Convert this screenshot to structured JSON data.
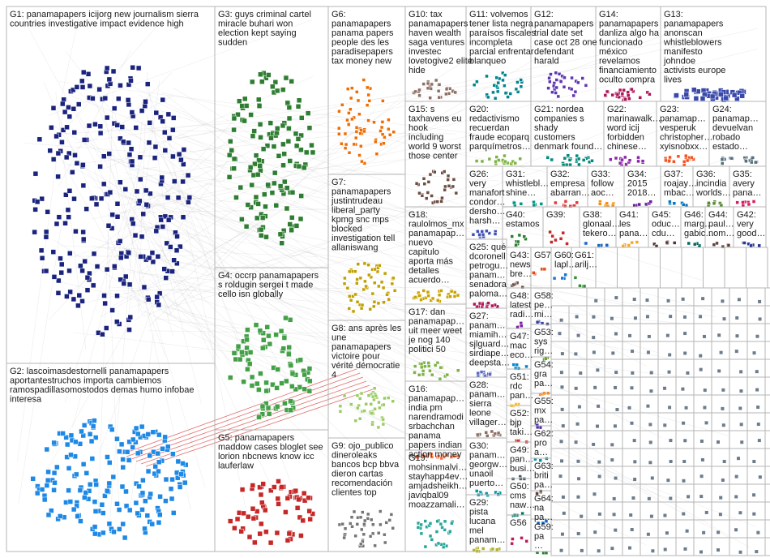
{
  "groups": [
    {
      "lines": [
        "G1: panamapapers icijorg new journalism sierra",
        "countries investigative impact evidence high"
      ]
    },
    {
      "lines": [
        "G2: lascoimasdestornelli panamapapers",
        "aportantestruchos importa cambiemos",
        "ramospadillasomostodos demas humo infobae",
        "interesa"
      ]
    },
    {
      "lines": [
        "G3: guys criminal cartel",
        "miracle buhari won",
        "election kept saying",
        "sudden"
      ]
    },
    {
      "lines": [
        "G4: occrp panamapapers",
        "s roldugin sergei t made",
        "cello isn globally"
      ]
    },
    {
      "lines": [
        "G5: panamapapers",
        "maddow cases bloglet see",
        "lorion nbcnews know icc",
        "lauferlaw"
      ]
    },
    {
      "lines": [
        "G6:",
        "panamapapers",
        "panama papers",
        "people des les",
        "paradisepapers",
        "tax money new"
      ]
    },
    {
      "lines": [
        "G7:",
        "panamapapers",
        "justintrudeau",
        "liberal_party",
        "kpmg snc mps",
        "blocked",
        "investigation tell",
        "allaniswang"
      ]
    },
    {
      "lines": [
        "G8: ans après les",
        "une",
        "panamapapers",
        "victoire pour",
        "vérité démocratie",
        "4"
      ]
    },
    {
      "lines": [
        "G9: ojo_publico",
        "dineroleaks",
        "bancos bcp bbva",
        "dieron cartas",
        "recomendación",
        "clientes top"
      ]
    },
    {
      "lines": [
        "G10: tax",
        "panamapapers",
        "haven wealth",
        "saga ventures",
        "investec",
        "lovetogive2 elite",
        "hide"
      ]
    },
    {
      "lines": [
        "G11: volvemos",
        "tener lista negra",
        "paraísos fiscales",
        "incompleta",
        "parcial enfrentar",
        "blanqueo"
      ]
    },
    {
      "lines": [
        "G12:",
        "panamapapers",
        "trial date set",
        "case oct 28 one",
        "defendant",
        "harald"
      ]
    },
    {
      "lines": [
        "G14:",
        "panamapapers",
        "danliza algo ha",
        "funcionado",
        "méxico",
        "revelamos",
        "financiamiento",
        "oculto compra"
      ]
    },
    {
      "lines": [
        "G13:",
        "panamapapers",
        "anonscan",
        "whistleblowers",
        "manifesto",
        "johndoe",
        "activists europe",
        "lives"
      ]
    },
    {
      "lines": [
        "G15: s",
        "taxhavens eu",
        "hook",
        "including",
        "world 9 worst",
        "those center"
      ]
    },
    {
      "lines": [
        "G20:",
        "redactivismo",
        "recuerdan",
        "fraude ecoparq",
        "parquímetros…"
      ]
    },
    {
      "lines": [
        "G21: nordea",
        "companies s",
        "shady",
        "customers",
        "denmark found…"
      ]
    },
    {
      "lines": [
        "G22:",
        "marinawalk…",
        "word icij",
        "forbidden",
        "chinese…"
      ]
    },
    {
      "lines": [
        "G23:",
        "panamap…",
        "vesperuk",
        "christopher…",
        "xyisnobxx…"
      ]
    },
    {
      "lines": [
        "G24:",
        "panamap…",
        "devuelvan",
        "robado",
        "estado…"
      ]
    },
    {
      "lines": [
        "G18:",
        "raulolmos_mx",
        "panamapap…",
        "nuevo",
        "capitulo",
        "aporta más",
        "detalles",
        "acuerdo…"
      ]
    },
    {
      "lines": [
        "G26:",
        "very",
        "manafort",
        "condor…",
        "dersho…",
        "harsh…"
      ]
    },
    {
      "lines": [
        "G31:",
        "whistlebl…",
        "shine…"
      ]
    },
    {
      "lines": [
        "G32:",
        "empresa",
        "abarran…"
      ]
    },
    {
      "lines": [
        "G33:",
        "follow",
        "aoc…"
      ]
    },
    {
      "lines": [
        "G34:",
        "2015",
        "2018…"
      ]
    },
    {
      "lines": [
        "G37:",
        "roajay…",
        "mbac…"
      ]
    },
    {
      "lines": [
        "G36:",
        "incindia",
        "worlds…"
      ]
    },
    {
      "lines": [
        "G35:",
        "avery",
        "pana…"
      ]
    },
    {
      "lines": [
        "G40:",
        "estamos"
      ]
    },
    {
      "lines": [
        "G39:"
      ]
    },
    {
      "lines": [
        "G38:",
        "glonaal…",
        "tekero…"
      ]
    },
    {
      "lines": [
        "G41:",
        "les",
        "pana…"
      ]
    },
    {
      "lines": [
        "G45:",
        "oduc…",
        "cdu…"
      ]
    },
    {
      "lines": [
        "G46:",
        "marg…",
        "gabic…"
      ]
    },
    {
      "lines": [
        "G44:",
        "paul…",
        "nom…"
      ]
    },
    {
      "lines": [
        "G42:",
        "very",
        "good…"
      ]
    },
    {
      "lines": [
        "G25: qué",
        "dcoronell",
        "petrogu…",
        "panam…",
        "senadora",
        "paloma…"
      ]
    },
    {
      "lines": [
        "G17: dan",
        "panamapap…",
        "uit meer weet",
        "je nog 140",
        "politici 50"
      ]
    },
    {
      "lines": [
        "G16:",
        "panamapap…",
        "india pm",
        "narendramodi",
        "srbachchan",
        "panama",
        "papers indian",
        "action money"
      ]
    },
    {
      "lines": [
        "G19:",
        "mohsinmalvi…",
        "stayhapp4ev…",
        "amjadsheikh…",
        "javiqbal09",
        "moazzamali…"
      ]
    },
    {
      "lines": [
        "G27:",
        "panam…",
        "miamih…",
        "sjlguard…",
        "sirdiape…",
        "deepsta…"
      ]
    },
    {
      "lines": [
        "G28:",
        "panam…",
        "sierra",
        "leone",
        "villager…"
      ]
    },
    {
      "lines": [
        "G30:",
        "panam…",
        "georgw…",
        "unaoil",
        "puerto…"
      ]
    },
    {
      "lines": [
        "G29:",
        "pista",
        "lucana",
        "mel",
        "panam…"
      ]
    },
    {
      "lines": [
        "G43:",
        "news",
        "bre…"
      ]
    },
    {
      "lines": [
        "G57"
      ]
    },
    {
      "lines": [
        "G60:",
        "lapl…"
      ]
    },
    {
      "lines": [
        "G61:",
        "arilj…"
      ]
    },
    {
      "lines": [
        "G48:",
        "latest",
        "radi…"
      ]
    },
    {
      "lines": [
        "G47:",
        "mac",
        "eco…"
      ]
    },
    {
      "lines": [
        "G51:",
        "rdc",
        "pan…"
      ]
    },
    {
      "lines": [
        "G52:",
        "bjp",
        "taki…"
      ]
    },
    {
      "lines": [
        "G49:",
        "pan…",
        "busi…"
      ]
    },
    {
      "lines": [
        "G50:",
        "cms",
        "naw…"
      ]
    },
    {
      "lines": [
        "G56"
      ]
    },
    {
      "lines": [
        "G58:",
        "pe…",
        "mi…"
      ]
    },
    {
      "lines": [
        "G53:",
        "sys",
        "rig…"
      ]
    },
    {
      "lines": [
        "G54:",
        "gra",
        "pa…"
      ]
    },
    {
      "lines": [
        "G55:",
        "mx",
        "pa…"
      ]
    },
    {
      "lines": [
        "G62:",
        "pro",
        "a…"
      ]
    },
    {
      "lines": [
        "G63:",
        "briti",
        "pa…"
      ]
    },
    {
      "lines": [
        "G64:",
        "na",
        "pa…"
      ]
    },
    {
      "lines": [
        "G59:",
        "pa",
        "…"
      ]
    }
  ]
}
